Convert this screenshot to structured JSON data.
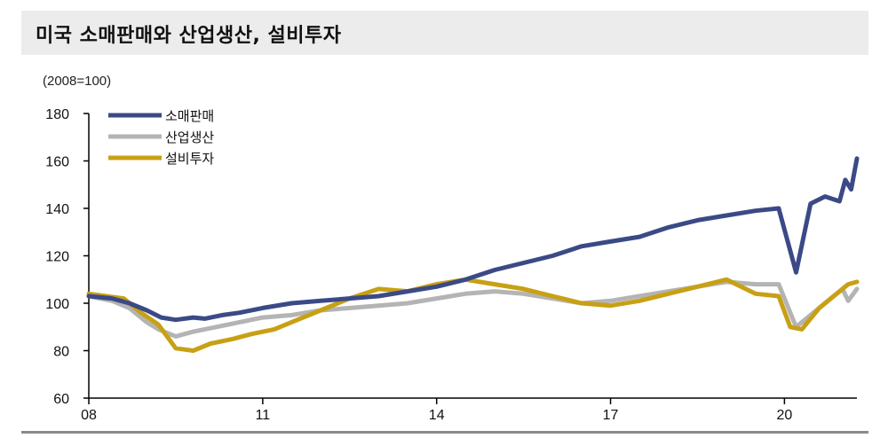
{
  "title": "미국 소매판매와 산업생산, 설비투자",
  "chart_data": {
    "type": "line",
    "unit_note": "(2008=100)",
    "ylim": [
      60,
      180
    ],
    "y_ticks": [
      "60",
      "80",
      "100",
      "120",
      "140",
      "160",
      "180"
    ],
    "x_ticks": [
      {
        "t": 0,
        "label": "08"
      },
      {
        "t": 3,
        "label": "11"
      },
      {
        "t": 6,
        "label": "14"
      },
      {
        "t": 9,
        "label": "17"
      },
      {
        "t": 12,
        "label": "20"
      }
    ],
    "xlim": [
      0,
      13.25
    ],
    "legend_position": "top-left",
    "series": [
      {
        "name": "소매판매",
        "color": "#3b4a86",
        "points": [
          [
            0,
            103
          ],
          [
            0.4,
            102
          ],
          [
            0.7,
            100
          ],
          [
            1.0,
            97
          ],
          [
            1.25,
            94
          ],
          [
            1.5,
            93
          ],
          [
            1.8,
            94
          ],
          [
            2.0,
            93.5
          ],
          [
            2.3,
            95
          ],
          [
            2.6,
            96
          ],
          [
            3.0,
            98
          ],
          [
            3.5,
            100
          ],
          [
            4.0,
            101
          ],
          [
            4.5,
            102
          ],
          [
            5.0,
            103
          ],
          [
            5.5,
            105
          ],
          [
            6.0,
            107
          ],
          [
            6.5,
            110
          ],
          [
            7.0,
            114
          ],
          [
            7.5,
            117
          ],
          [
            8.0,
            120
          ],
          [
            8.5,
            124
          ],
          [
            9.0,
            126
          ],
          [
            9.5,
            128
          ],
          [
            10.0,
            132
          ],
          [
            10.5,
            135
          ],
          [
            11.0,
            137
          ],
          [
            11.5,
            139
          ],
          [
            11.9,
            140
          ],
          [
            12.2,
            113
          ],
          [
            12.45,
            142
          ],
          [
            12.7,
            145
          ],
          [
            12.95,
            143
          ],
          [
            13.05,
            152
          ],
          [
            13.15,
            148
          ],
          [
            13.25,
            161
          ]
        ]
      },
      {
        "name": "산업생산",
        "color": "#b4b4b4",
        "points": [
          [
            0,
            103
          ],
          [
            0.4,
            101
          ],
          [
            0.7,
            98
          ],
          [
            1.0,
            92
          ],
          [
            1.2,
            89
          ],
          [
            1.5,
            86
          ],
          [
            1.8,
            88
          ],
          [
            2.2,
            90
          ],
          [
            2.6,
            92
          ],
          [
            3.0,
            94
          ],
          [
            3.5,
            95
          ],
          [
            4.0,
            97
          ],
          [
            4.5,
            98
          ],
          [
            5.0,
            99
          ],
          [
            5.5,
            100
          ],
          [
            6.0,
            102
          ],
          [
            6.5,
            104
          ],
          [
            7.0,
            105
          ],
          [
            7.5,
            104
          ],
          [
            8.0,
            102
          ],
          [
            8.5,
            100
          ],
          [
            9.0,
            101
          ],
          [
            9.5,
            103
          ],
          [
            10.0,
            105
          ],
          [
            10.5,
            107
          ],
          [
            11.0,
            109
          ],
          [
            11.5,
            108
          ],
          [
            11.9,
            108
          ],
          [
            12.2,
            90
          ],
          [
            12.5,
            96
          ],
          [
            12.8,
            102
          ],
          [
            13.0,
            106
          ],
          [
            13.1,
            101
          ],
          [
            13.25,
            106
          ]
        ]
      },
      {
        "name": "설비투자",
        "color": "#c8a014",
        "points": [
          [
            0,
            104
          ],
          [
            0.3,
            103
          ],
          [
            0.6,
            102
          ],
          [
            0.9,
            96
          ],
          [
            1.2,
            91
          ],
          [
            1.35,
            86
          ],
          [
            1.5,
            81
          ],
          [
            1.8,
            80
          ],
          [
            2.1,
            83
          ],
          [
            2.5,
            85
          ],
          [
            2.8,
            87
          ],
          [
            3.2,
            89
          ],
          [
            3.6,
            93
          ],
          [
            4.0,
            97
          ],
          [
            4.5,
            102
          ],
          [
            5.0,
            106
          ],
          [
            5.5,
            105
          ],
          [
            6.0,
            108
          ],
          [
            6.5,
            110
          ],
          [
            7.0,
            108
          ],
          [
            7.5,
            106
          ],
          [
            8.0,
            103
          ],
          [
            8.5,
            100
          ],
          [
            9.0,
            99
          ],
          [
            9.5,
            101
          ],
          [
            10.0,
            104
          ],
          [
            10.5,
            107
          ],
          [
            11.0,
            110
          ],
          [
            11.5,
            104
          ],
          [
            11.9,
            103
          ],
          [
            12.1,
            90
          ],
          [
            12.3,
            89
          ],
          [
            12.6,
            98
          ],
          [
            12.9,
            104
          ],
          [
            13.1,
            108
          ],
          [
            13.25,
            109
          ]
        ]
      }
    ]
  }
}
